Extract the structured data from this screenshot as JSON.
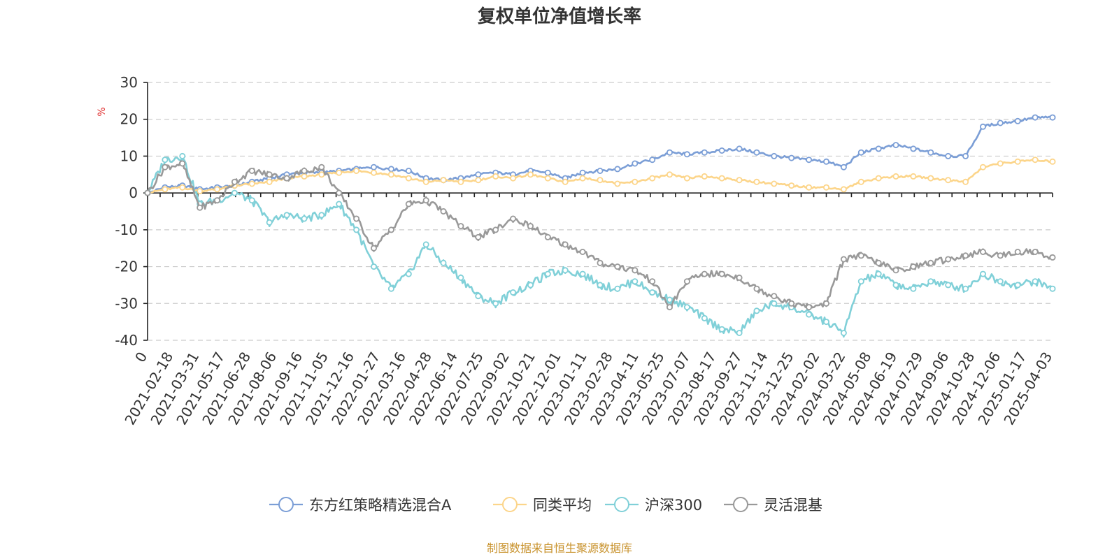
{
  "chart_data": {
    "type": "line",
    "title": "复权单位净值增长率",
    "ylabel": "%",
    "xlabel": "",
    "ylim": [
      -40,
      30
    ],
    "yticks": [
      30,
      20,
      10,
      0,
      -10,
      -20,
      -30,
      -40
    ],
    "grid": true,
    "legend_position": "bottom",
    "source_note": "制图数据来自恒生聚源数据库",
    "x_tick_labels": [
      "0",
      "2021-02-18",
      "2021-03-31",
      "2021-05-17",
      "2021-06-28",
      "2021-08-06",
      "2021-09-16",
      "2021-11-05",
      "2021-12-16",
      "2022-01-27",
      "2022-03-16",
      "2022-04-28",
      "2022-06-14",
      "2022-07-25",
      "2022-09-02",
      "2022-10-21",
      "2022-12-01",
      "2023-01-11",
      "2023-02-28",
      "2023-04-11",
      "2023-05-25",
      "2023-07-07",
      "2023-08-17",
      "2023-09-27",
      "2023-11-14",
      "2023-12-25",
      "2024-02-02",
      "2024-03-22",
      "2024-05-08",
      "2024-06-19",
      "2024-07-29",
      "2024-09-06",
      "2024-10-28",
      "2024-12-06",
      "2025-01-17",
      "2025-04-03"
    ],
    "series": [
      {
        "name": "东方红策略精选混合A",
        "color": "#7b9ed6",
        "values": [
          0,
          1.5,
          2,
          1,
          1.5,
          2,
          3,
          4,
          5,
          5.5,
          5.5,
          6,
          6.5,
          7,
          6.5,
          6,
          4,
          3.5,
          4,
          5,
          5.5,
          5,
          6,
          5.5,
          4,
          5.5,
          6,
          6.5,
          8,
          9,
          11,
          10.5,
          11,
          11.5,
          12,
          11,
          10,
          9.5,
          9,
          8.5,
          7,
          11,
          12,
          13,
          12,
          11,
          10,
          10,
          18,
          19,
          19.5,
          20.5,
          20.5
        ]
      },
      {
        "name": "同类平均",
        "color": "#fcd58a",
        "values": [
          0,
          1,
          1.5,
          0.5,
          1,
          2,
          2.5,
          3,
          4,
          4.5,
          5,
          5.5,
          6,
          5.5,
          5,
          4,
          3,
          3.5,
          3,
          3.5,
          4.5,
          4,
          5,
          4,
          3,
          4,
          3.5,
          2.5,
          3,
          4,
          5,
          4,
          4.5,
          4,
          3.5,
          3,
          2.5,
          2,
          1.5,
          1.5,
          1,
          3,
          4,
          4.5,
          4.5,
          4,
          3.5,
          3,
          7,
          8,
          8.5,
          9,
          8.5
        ]
      },
      {
        "name": "沪深300",
        "color": "#80d0d8",
        "values": [
          0,
          9,
          10,
          -3,
          -2,
          0,
          -2,
          -8,
          -6,
          -7,
          -6,
          -3,
          -10,
          -20,
          -26,
          -22,
          -14,
          -19,
          -23,
          -28,
          -30,
          -27,
          -25,
          -22,
          -21,
          -22,
          -25,
          -26,
          -24,
          -27,
          -29,
          -31,
          -34,
          -37,
          -38,
          -32,
          -30,
          -31,
          -33,
          -35,
          -38,
          -24,
          -22,
          -25,
          -26,
          -24,
          -25,
          -26,
          -22,
          -24,
          -25,
          -24,
          -26
        ]
      },
      {
        "name": "灵活混基",
        "color": "#999999",
        "values": [
          0,
          7,
          8,
          -4,
          -2,
          3,
          6,
          5,
          4,
          6,
          7,
          0,
          -7,
          -15,
          -10,
          -3,
          -2,
          -5,
          -9,
          -12,
          -10,
          -7,
          -9,
          -12,
          -14,
          -16,
          -19,
          -20,
          -21,
          -24,
          -31,
          -24,
          -22,
          -22,
          -23,
          -26,
          -28,
          -30,
          -31,
          -30,
          -18,
          -17,
          -19,
          -21,
          -20,
          -19,
          -18,
          -17,
          -16,
          -17,
          -16,
          -16,
          -17.5
        ]
      }
    ]
  }
}
